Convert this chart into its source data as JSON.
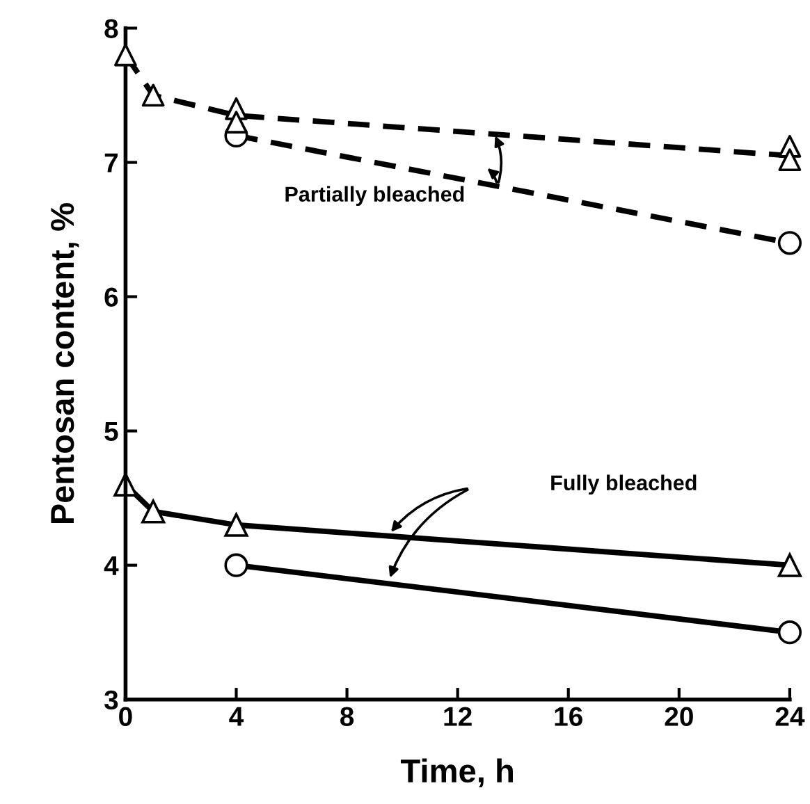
{
  "chart_data": {
    "type": "line",
    "xlabel": "Time, h",
    "ylabel": "Pentosan content, %",
    "xlim": [
      0,
      24
    ],
    "ylim": [
      3,
      8
    ],
    "xticks": [
      0,
      4,
      8,
      12,
      16,
      20,
      24
    ],
    "yticks": [
      3,
      4,
      5,
      6,
      7,
      8
    ],
    "grid": false,
    "series": [
      {
        "color": "#000000",
        "x": [
          0,
          1,
          4,
          24
        ],
        "values": [
          7.8,
          7.5,
          7.35,
          7.05
        ],
        "marker": "none",
        "line_style": "dashed"
      },
      {
        "type": "scatter",
        "color": "#000000",
        "x": [
          0,
          1,
          4,
          4,
          24,
          24
        ],
        "values": [
          7.8,
          7.5,
          7.4,
          7.3,
          7.12,
          7.02
        ],
        "marker": "triangle"
      },
      {
        "color": "#000000",
        "x": [
          4,
          24
        ],
        "values": [
          7.2,
          6.4
        ],
        "marker": "circle",
        "line_style": "dashed"
      },
      {
        "color": "#000000",
        "x": [
          0,
          1,
          4,
          24
        ],
        "values": [
          4.6,
          4.4,
          4.3,
          4.0
        ],
        "marker": "triangle",
        "line_style": "solid"
      },
      {
        "color": "#000000",
        "x": [
          4,
          24
        ],
        "values": [
          4.0,
          3.5
        ],
        "marker": "circle",
        "line_style": "solid"
      }
    ],
    "annotations": [
      "Partially bleached",
      "Fully bleached"
    ]
  }
}
